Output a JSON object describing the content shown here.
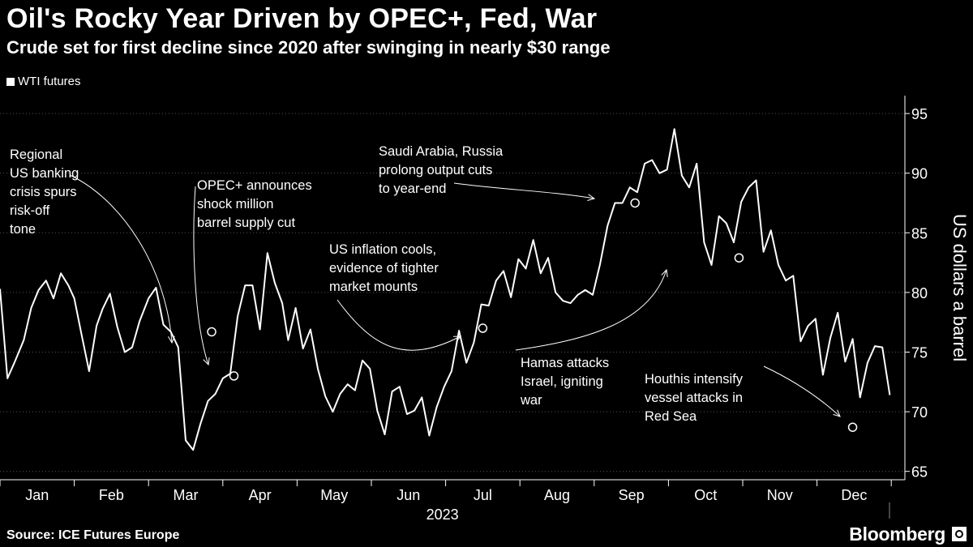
{
  "title": "Oil's Rocky Year Driven by OPEC+, Fed, War",
  "subtitle": "Crude set for first decline since 2020 after swinging in nearly $30 range",
  "legend": {
    "label": "WTI futures"
  },
  "source": "Source: ICE Futures Europe",
  "brand": "Bloomberg",
  "colors": {
    "background": "#000000",
    "line": "#ffffff",
    "grid": "#555555"
  },
  "chart_data": {
    "type": "line",
    "title": "Oil's Rocky Year Driven by OPEC+, Fed, War",
    "subtitle": "Crude set for first decline since 2020 after swinging in nearly $30 range",
    "xlabel": "2023",
    "ylabel": "US dollars a barrel",
    "ylim": [
      64.3,
      96.5
    ],
    "yticks": [
      65,
      70,
      75,
      80,
      85,
      90,
      95
    ],
    "x_categories": [
      "Jan",
      "Feb",
      "Mar",
      "Apr",
      "May",
      "Jun",
      "Jul",
      "Aug",
      "Sep",
      "Oct",
      "Nov",
      "Dec"
    ],
    "xaxis_year": "2023",
    "grid": true,
    "legend_position": "top-left",
    "series": [
      {
        "name": "WTI futures",
        "x": [
          0,
          0.1,
          0.2,
          0.32,
          0.42,
          0.52,
          0.62,
          0.72,
          0.82,
          0.92,
          1.0,
          1.1,
          1.2,
          1.3,
          1.38,
          1.48,
          1.58,
          1.68,
          1.78,
          1.88,
          2.0,
          2.1,
          2.2,
          2.3,
          2.4,
          2.5,
          2.6,
          2.7,
          2.8,
          2.9,
          3.0,
          3.1,
          3.2,
          3.3,
          3.4,
          3.5,
          3.6,
          3.7,
          3.8,
          3.88,
          3.98,
          4.08,
          4.18,
          4.28,
          4.38,
          4.48,
          4.58,
          4.68,
          4.78,
          4.88,
          4.98,
          5.08,
          5.18,
          5.28,
          5.38,
          5.48,
          5.58,
          5.68,
          5.78,
          5.88,
          5.98,
          6.08,
          6.18,
          6.28,
          6.38,
          6.48,
          6.58,
          6.68,
          6.78,
          6.88,
          6.98,
          7.08,
          7.18,
          7.28,
          7.38,
          7.48,
          7.58,
          7.68,
          7.78,
          7.88,
          7.98,
          8.08,
          8.18,
          8.28,
          8.38,
          8.48,
          8.58,
          8.68,
          8.78,
          8.88,
          8.98,
          9.08,
          9.18,
          9.28,
          9.38,
          9.48,
          9.58,
          9.68,
          9.78,
          9.88,
          9.98,
          10.08,
          10.18,
          10.28,
          10.38,
          10.48,
          10.58,
          10.68,
          10.78,
          10.88,
          10.98,
          11.08,
          11.18,
          11.28,
          11.38,
          11.48,
          11.58,
          11.68,
          11.78,
          11.88,
          11.98
        ],
        "values": [
          80.3,
          72.8,
          74.2,
          76.0,
          78.7,
          80.2,
          81.0,
          79.5,
          81.6,
          80.6,
          79.5,
          76.4,
          73.4,
          77.2,
          78.6,
          79.9,
          77.1,
          75.0,
          75.4,
          77.6,
          79.5,
          80.4,
          77.3,
          76.7,
          75.4,
          67.6,
          66.8,
          69.0,
          70.9,
          71.5,
          72.8,
          73.2,
          78.0,
          80.6,
          80.6,
          76.9,
          83.3,
          80.8,
          79.1,
          76.0,
          78.7,
          75.3,
          76.9,
          73.6,
          71.3,
          70.0,
          71.5,
          72.3,
          71.8,
          74.3,
          73.6,
          70.1,
          68.1,
          71.7,
          72.1,
          69.8,
          70.1,
          71.2,
          68.0,
          70.4,
          72.1,
          73.4,
          76.8,
          74.1,
          75.8,
          79.0,
          78.9,
          81.0,
          81.8,
          79.6,
          82.8,
          82.0,
          84.4,
          81.6,
          82.9,
          80.0,
          79.3,
          79.1,
          79.8,
          80.2,
          79.8,
          82.4,
          85.6,
          87.5,
          87.5,
          88.8,
          88.4,
          90.8,
          91.1,
          90.0,
          90.3,
          93.7,
          89.8,
          88.8,
          90.8,
          84.2,
          82.3,
          86.4,
          85.8,
          84.2,
          87.6,
          88.8,
          89.4,
          83.4,
          85.2,
          82.3,
          81.0,
          81.4,
          75.9,
          77.2,
          77.8,
          73.1,
          76.2,
          78.3,
          74.2,
          76.1,
          71.2,
          74.1,
          75.5,
          75.4,
          71.4
        ]
      }
    ],
    "annotations": [
      {
        "lines": [
          "Regional",
          "US banking",
          "crisis spurs",
          "risk-off",
          "tone"
        ],
        "x": 2.85,
        "y": 76.7
      },
      {
        "lines": [
          "OPEC+ announces",
          "shock million",
          "barrel supply cut"
        ],
        "x": 3.15,
        "y": 73.0
      },
      {
        "lines": [
          "US inflation cools,",
          "evidence of tighter",
          "market mounts"
        ],
        "x": 6.5,
        "y": 77.0
      },
      {
        "lines": [
          "Saudi Arabia, Russia",
          "prolong output cuts",
          "to year-end"
        ],
        "x": 8.55,
        "y": 87.5
      },
      {
        "lines": [
          "Hamas attacks",
          "Israel, igniting",
          "war"
        ],
        "x": 9.95,
        "y": 82.9
      },
      {
        "lines": [
          "Houthis intensify",
          "vessel attacks in",
          "Red Sea"
        ],
        "x": 11.48,
        "y": 68.7
      }
    ]
  }
}
